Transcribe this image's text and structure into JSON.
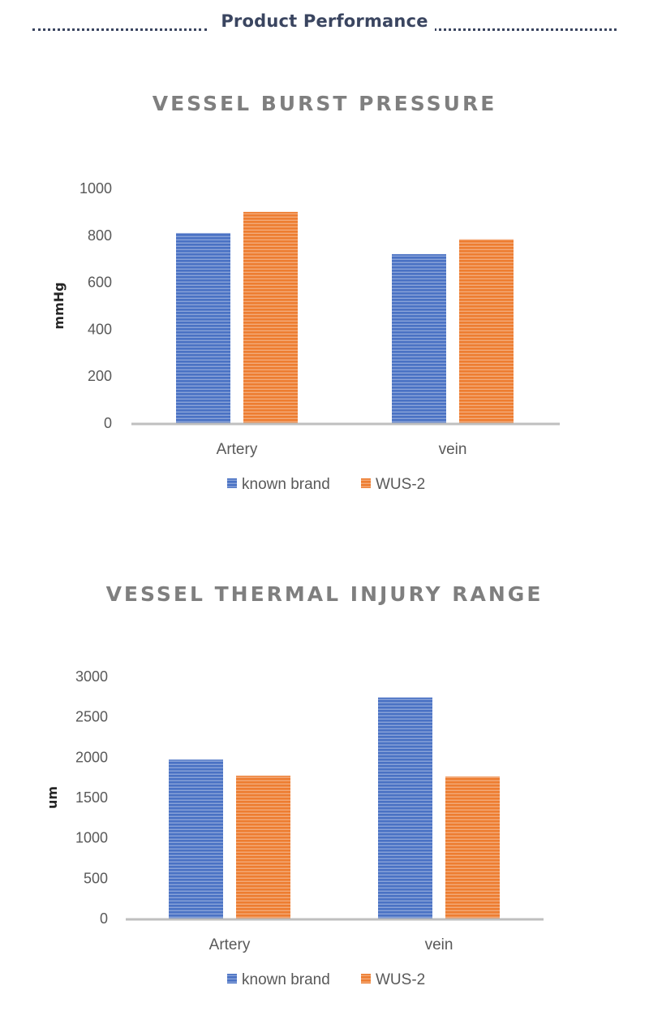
{
  "header": {
    "title": "Product Performance"
  },
  "colors": {
    "known_brand": "#4a72c4",
    "wus2": "#ed7d31",
    "axis": "#bfbfbf",
    "header": "#3a4560"
  },
  "chart_data": [
    {
      "type": "bar",
      "title": "VESSEL BURST PRESSURE",
      "categories": [
        "Artery",
        "vein"
      ],
      "series": [
        {
          "name": "known brand",
          "values": [
            810,
            720
          ]
        },
        {
          "name": "WUS-2",
          "values": [
            900,
            783
          ]
        }
      ],
      "ylabel": "mmHg",
      "xlabel": "",
      "ylim": [
        0,
        1000
      ],
      "yticks": [
        0,
        200,
        400,
        600,
        800,
        1000
      ],
      "grid": false,
      "legend": "bottom"
    },
    {
      "type": "bar",
      "title": "VESSEL THERMAL INJURY RANGE",
      "categories": [
        "Artery",
        "vein"
      ],
      "series": [
        {
          "name": "known brand",
          "values": [
            1970,
            2740
          ]
        },
        {
          "name": "WUS-2",
          "values": [
            1770,
            1760
          ]
        }
      ],
      "ylabel": "um",
      "xlabel": "",
      "ylim": [
        0,
        3000
      ],
      "yticks": [
        0,
        500,
        1000,
        1500,
        2000,
        2500,
        3000
      ],
      "grid": false,
      "legend": "bottom"
    }
  ]
}
